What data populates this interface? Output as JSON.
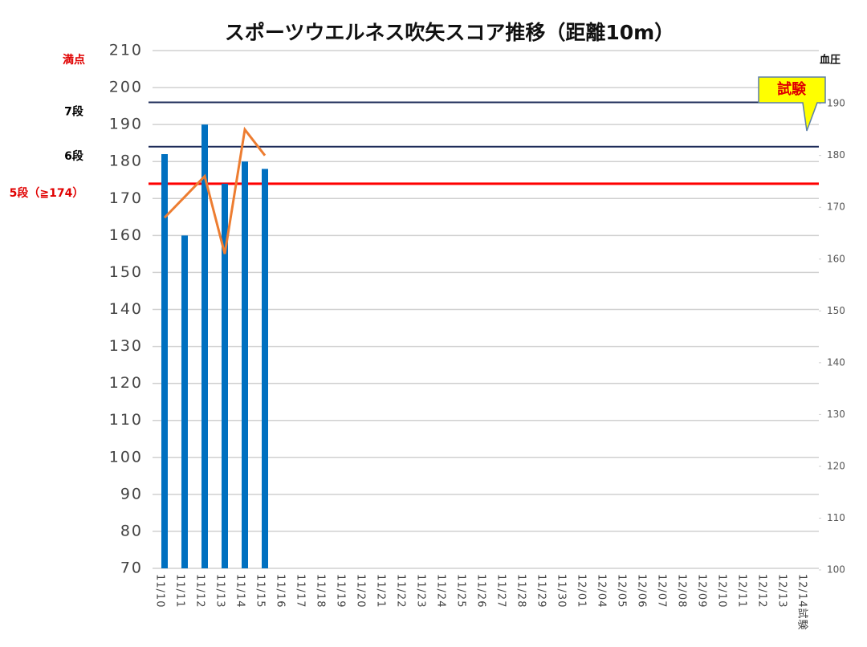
{
  "chart_data": {
    "type": "bar",
    "title": "スポーツウエルネス吹矢スコア推移（距離10m）",
    "categories": [
      "11/10",
      "11/11",
      "11/12",
      "11/13",
      "11/14",
      "11/15",
      "11/16",
      "11/17",
      "11/18",
      "11/19",
      "11/20",
      "11/21",
      "11/22",
      "11/23",
      "11/24",
      "11/25",
      "11/26",
      "11/27",
      "11/28",
      "11/29",
      "11/30",
      "12/01",
      "12/04",
      "12/05",
      "12/06",
      "12/07",
      "12/08",
      "12/09",
      "12/10",
      "12/11",
      "12/12",
      "12/13",
      "12/14試験"
    ],
    "series": [
      {
        "type": "bar",
        "color": "#0070c0",
        "values": [
          182,
          160,
          190,
          174,
          180,
          178,
          null,
          null,
          null,
          null,
          null,
          null,
          null,
          null,
          null,
          null,
          null,
          null,
          null,
          null,
          null,
          null,
          null,
          null,
          null,
          null,
          null,
          null,
          null,
          null,
          null,
          null,
          null
        ]
      },
      {
        "type": "line",
        "axis": "y2",
        "color": "#ed7d31",
        "values": [
          168,
          172,
          176,
          161,
          185,
          180,
          null,
          null,
          null,
          null,
          null,
          null,
          null,
          null,
          null,
          null,
          null,
          null,
          null,
          null,
          null,
          null,
          null,
          null,
          null,
          null,
          null,
          null,
          null,
          null,
          null,
          null,
          null
        ]
      }
    ],
    "ylim": [
      70,
      210
    ],
    "yticks": [
      70,
      80,
      90,
      100,
      110,
      120,
      130,
      140,
      150,
      160,
      170,
      180,
      190,
      200,
      210
    ],
    "y2lim": [
      100,
      200
    ],
    "y2ticks": [
      100,
      110,
      120,
      130,
      140,
      150,
      160,
      170,
      180,
      190
    ],
    "y2label": "血圧",
    "grid": true,
    "reference_lines": [
      {
        "label": "満点",
        "value": 210,
        "label_color": "#e00000",
        "line": false
      },
      {
        "label": "7段",
        "value": 196,
        "label_color": "#000000",
        "color": "#1f2d5a",
        "line": true
      },
      {
        "label": "6段",
        "value": 184,
        "label_color": "#000000",
        "color": "#1f2d5a",
        "line": true
      },
      {
        "label": "5段（≧174）",
        "value": 174,
        "label_color": "#e00000",
        "color": "#ff0000",
        "line": true
      }
    ],
    "annotation": "試験"
  }
}
